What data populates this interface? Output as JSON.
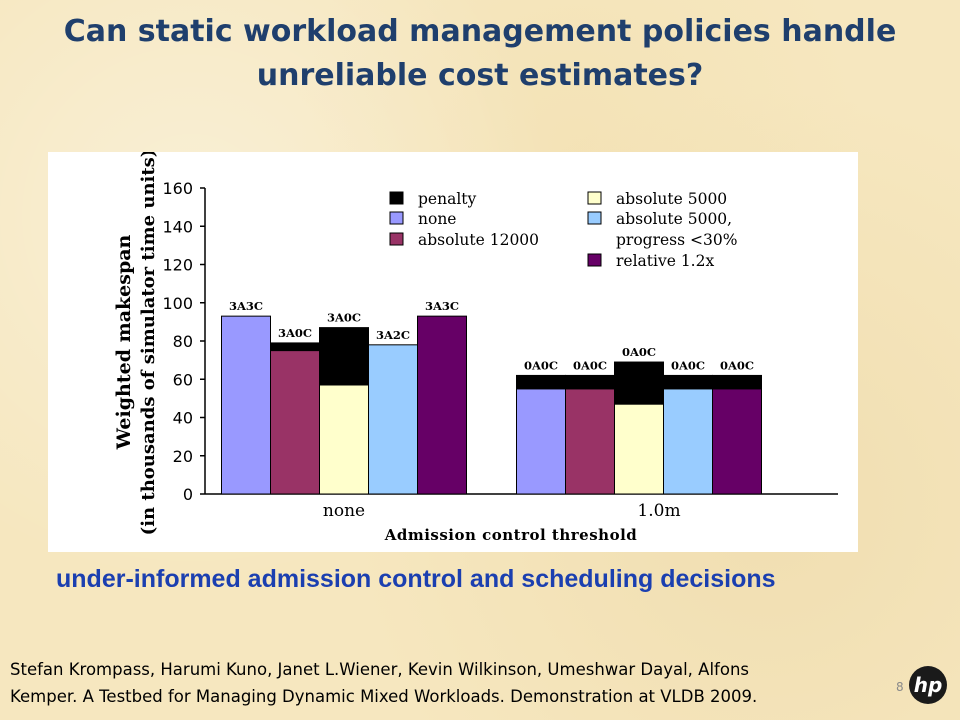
{
  "slide": {
    "title_line1": "Can static workload management policies handle",
    "title_line2": "unreliable cost estimates?",
    "subtitle": "under-informed admission control and scheduling decisions",
    "citation_line1": "Stefan Krompass, Harumi Kuno, Janet L.Wiener, Kevin Wilkinson, Umeshwar Dayal, Alfons",
    "citation_line2": "Kemper. A Testbed for Managing Dynamic Mixed Workloads. Demonstration at VLDB 2009.",
    "page_number": "8",
    "logo_text": "hp"
  },
  "chart_data": {
    "type": "bar",
    "stacked_component": "penalty",
    "xlabel": "Admission control threshold",
    "ylabel_line1": "Weighted makespan",
    "ylabel_line2": "(in thousands of simulator time units)",
    "ylim": [
      0,
      160
    ],
    "yticks": [
      0,
      20,
      40,
      60,
      80,
      100,
      120,
      140,
      160
    ],
    "grid": false,
    "legend_position": "top",
    "categories": [
      "none",
      "1.0m"
    ],
    "series": [
      {
        "name": "none",
        "color": "#9999ff",
        "values": [
          93,
          55
        ],
        "penalty": [
          0,
          7
        ],
        "labels": [
          "3A3C",
          "0A0C"
        ]
      },
      {
        "name": "absolute 12000",
        "color": "#993366",
        "values": [
          75,
          55
        ],
        "penalty": [
          4,
          7
        ],
        "labels": [
          "3A0C",
          "0A0C"
        ]
      },
      {
        "name": "absolute 5000",
        "color": "#ffffcc",
        "values": [
          57,
          47
        ],
        "penalty": [
          30,
          22
        ],
        "labels": [
          "3A0C",
          "0A0C"
        ]
      },
      {
        "name": "absolute 5000, progress <30%",
        "color": "#99ccff",
        "values": [
          78,
          55
        ],
        "penalty": [
          0,
          7
        ],
        "labels": [
          "3A2C",
          "0A0C"
        ]
      },
      {
        "name": "relative 1.2x",
        "color": "#660066",
        "values": [
          93,
          55
        ],
        "penalty": [
          0,
          7
        ],
        "labels": [
          "3A3C",
          "0A0C"
        ]
      }
    ],
    "legend": [
      {
        "label": "penalty",
        "color": "#000000"
      },
      {
        "label": "absolute 5000",
        "color": "#ffffcc"
      },
      {
        "label": "none",
        "color": "#9999ff"
      },
      {
        "label": "absolute 5000,",
        "color": "#99ccff"
      },
      {
        "label": "absolute 12000",
        "color": "#993366"
      },
      {
        "label": "progress <30%",
        "color": ""
      },
      {
        "label": "relative 1.2x",
        "color": "#660066"
      }
    ]
  }
}
